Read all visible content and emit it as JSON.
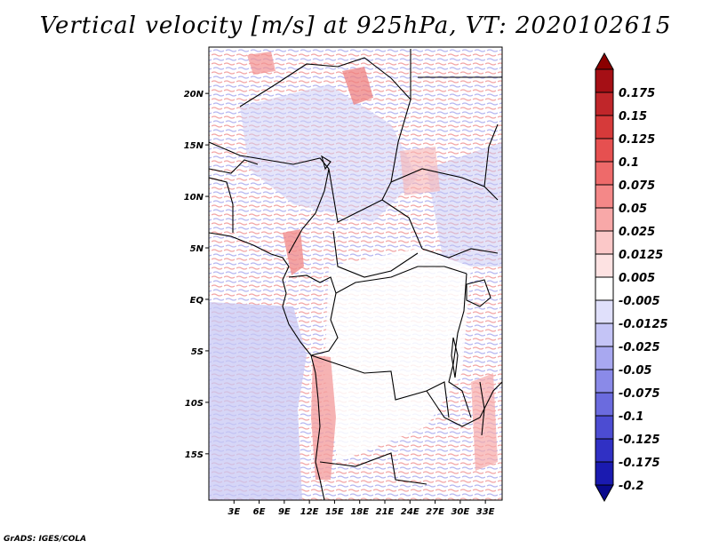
{
  "title": "Vertical velocity [m/s] at 925hPa, VT: 2020102615",
  "credit": "GrADS: IGES/COLA",
  "map": {
    "lon_range": [
      0,
      35
    ],
    "lat_range": [
      -19.5,
      24.5
    ],
    "lon_ticks": [
      {
        "value": 3,
        "label": "3E"
      },
      {
        "value": 6,
        "label": "6E"
      },
      {
        "value": 9,
        "label": "9E"
      },
      {
        "value": 12,
        "label": "12E"
      },
      {
        "value": 15,
        "label": "15E"
      },
      {
        "value": 18,
        "label": "18E"
      },
      {
        "value": 21,
        "label": "21E"
      },
      {
        "value": 24,
        "label": "24E"
      },
      {
        "value": 27,
        "label": "27E"
      },
      {
        "value": 30,
        "label": "30E"
      },
      {
        "value": 33,
        "label": "33E"
      }
    ],
    "lat_ticks": [
      {
        "value": 20,
        "label": "20N"
      },
      {
        "value": 15,
        "label": "15N"
      },
      {
        "value": 10,
        "label": "10N"
      },
      {
        "value": 5,
        "label": "5N"
      },
      {
        "value": 0,
        "label": "EQ"
      },
      {
        "value": -5,
        "label": "5S"
      },
      {
        "value": -10,
        "label": "10S"
      },
      {
        "value": -15,
        "label": "15S"
      }
    ]
  },
  "colorbar": {
    "levels": [
      {
        "label": "0.175",
        "color": "#a50f15"
      },
      {
        "label": "0.15",
        "color": "#c0262a"
      },
      {
        "label": "0.125",
        "color": "#d63a3a"
      },
      {
        "label": "0.1",
        "color": "#e65050"
      },
      {
        "label": "0.075",
        "color": "#ee6a6a"
      },
      {
        "label": "0.05",
        "color": "#f48888"
      },
      {
        "label": "0.025",
        "color": "#f8a8a8"
      },
      {
        "label": "0.0125",
        "color": "#fbc8c8"
      },
      {
        "label": "0.005",
        "color": "#fde2e2"
      },
      {
        "label": "-0.005",
        "color": "#ffffff"
      },
      {
        "label": "-0.0125",
        "color": "#e0e0fb"
      },
      {
        "label": "-0.025",
        "color": "#c4c4f6"
      },
      {
        "label": "-0.05",
        "color": "#a8a8f0"
      },
      {
        "label": "-0.075",
        "color": "#8a8ae8"
      },
      {
        "label": "-0.1",
        "color": "#6b6bde"
      },
      {
        "label": "-0.125",
        "color": "#4c4cd2"
      },
      {
        "label": "-0.175",
        "color": "#3030c4"
      },
      {
        "label": "-0.2",
        "color": "#1a1ab0"
      }
    ],
    "top_color": "#8b0000",
    "bottom_color": "#0a0a8c"
  }
}
